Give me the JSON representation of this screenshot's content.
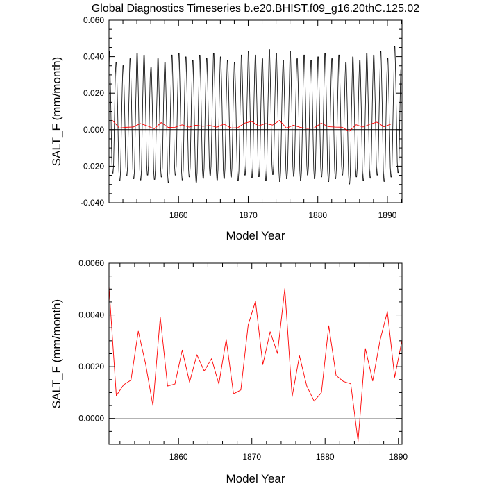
{
  "figure": {
    "title": "Global Diagnostics Timeseries b.e20.BHIST.f09_g16.20thC.125.02"
  },
  "chart_data": [
    {
      "type": "line",
      "title": "Global Diagnostics Timeseries b.e20.BHIST.f09_g16.20thC.125.02",
      "xlabel": "Model Year",
      "ylabel": "SALT_F (mm/month)",
      "xlim": [
        1850,
        1892.1
      ],
      "ylim": [
        -0.04,
        0.06
      ],
      "xticks": [
        {
          "value": 1860,
          "label": "1860"
        },
        {
          "value": 1870,
          "label": "1870"
        },
        {
          "value": 1880,
          "label": "1880"
        },
        {
          "value": 1890,
          "label": "1890"
        }
      ],
      "yticks": [
        {
          "value": -0.04,
          "label": "-0.040"
        },
        {
          "value": -0.02,
          "label": "-0.020"
        },
        {
          "value": 0.0,
          "label": "0.000"
        },
        {
          "value": 0.02,
          "label": "0.020"
        },
        {
          "value": 0.04,
          "label": "0.040"
        },
        {
          "value": 0.06,
          "label": "0.060"
        }
      ],
      "reference_line": 0,
      "grid": false,
      "series": [
        {
          "color": "#000000",
          "kind": "monthly",
          "x_start": 1850.0,
          "x_step": 0.08333,
          "annual_max": [
            0.045,
            0.039,
            0.037,
            0.041,
            0.044,
            0.043,
            0.036,
            0.041,
            0.039,
            0.043,
            0.044,
            0.042,
            0.04,
            0.043,
            0.041,
            0.044,
            0.042,
            0.04,
            0.039,
            0.043,
            0.045,
            0.043,
            0.041,
            0.046,
            0.044,
            0.04,
            0.045,
            0.041,
            0.043,
            0.04,
            0.042,
            0.044,
            0.041,
            0.043,
            0.039,
            0.042,
            0.04,
            0.044,
            0.043,
            0.045,
            0.041,
            0.048
          ],
          "annual_min": [
            -0.03,
            -0.034,
            -0.031,
            -0.033,
            -0.034,
            -0.031,
            -0.033,
            -0.032,
            -0.035,
            -0.031,
            -0.034,
            -0.032,
            -0.035,
            -0.033,
            -0.031,
            -0.034,
            -0.033,
            -0.032,
            -0.034,
            -0.031,
            -0.033,
            -0.032,
            -0.034,
            -0.031,
            -0.035,
            -0.033,
            -0.032,
            -0.034,
            -0.031,
            -0.033,
            -0.032,
            -0.035,
            -0.033,
            -0.031,
            -0.036,
            -0.032,
            -0.034,
            -0.033,
            -0.031,
            -0.035,
            -0.032,
            -0.03
          ]
        },
        {
          "color": "#ff0000",
          "kind": "annual",
          "x": [
            1850.5,
            1851.5,
            1852.5,
            1853.5,
            1854.5,
            1855.5,
            1856.5,
            1857.5,
            1858.5,
            1859.5,
            1860.5,
            1861.5,
            1862.5,
            1863.5,
            1864.5,
            1865.5,
            1866.5,
            1867.5,
            1868.5,
            1869.5,
            1870.5,
            1871.5,
            1872.5,
            1873.5,
            1874.5,
            1875.5,
            1876.5,
            1877.5,
            1878.5,
            1879.5,
            1880.5,
            1881.5,
            1882.5,
            1883.5,
            1884.5,
            1885.5,
            1886.5,
            1887.5,
            1888.5,
            1889.5,
            1890.5
          ],
          "y": [
            0.0051,
            0.00088,
            0.0013,
            0.00148,
            0.00337,
            0.0021,
            0.00049,
            0.00392,
            0.00125,
            0.00133,
            0.00264,
            0.0014,
            0.00246,
            0.00183,
            0.00231,
            0.00133,
            0.00306,
            0.00095,
            0.0011,
            0.00361,
            0.00453,
            0.00208,
            0.00335,
            0.00251,
            0.00502,
            0.00084,
            0.00242,
            0.00125,
            0.00067,
            0.001,
            0.00358,
            0.00166,
            0.00143,
            0.00134,
            -0.00088,
            0.0027,
            0.00145,
            0.00302,
            0.00413,
            0.00159,
            0.00303
          ]
        }
      ]
    },
    {
      "type": "line",
      "xlabel": "Model Year",
      "ylabel": "SALT_F (mm/month)",
      "xlim": [
        1850.5,
        1890.5
      ],
      "ylim": [
        -0.001,
        0.006
      ],
      "xticks": [
        {
          "value": 1860,
          "label": "1860"
        },
        {
          "value": 1870,
          "label": "1870"
        },
        {
          "value": 1880,
          "label": "1880"
        },
        {
          "value": 1890,
          "label": "1890"
        }
      ],
      "yticks": [
        {
          "value": 0.0,
          "label": "0.0000"
        },
        {
          "value": 0.002,
          "label": "0.0020"
        },
        {
          "value": 0.004,
          "label": "0.0040"
        },
        {
          "value": 0.006,
          "label": "0.0060"
        }
      ],
      "reference_line": 0,
      "grid": false,
      "series": [
        {
          "color": "#ff0000",
          "kind": "annual",
          "x": [
            1850.5,
            1851.5,
            1852.5,
            1853.5,
            1854.5,
            1855.5,
            1856.5,
            1857.5,
            1858.5,
            1859.5,
            1860.5,
            1861.5,
            1862.5,
            1863.5,
            1864.5,
            1865.5,
            1866.5,
            1867.5,
            1868.5,
            1869.5,
            1870.5,
            1871.5,
            1872.5,
            1873.5,
            1874.5,
            1875.5,
            1876.5,
            1877.5,
            1878.5,
            1879.5,
            1880.5,
            1881.5,
            1882.5,
            1883.5,
            1884.5,
            1885.5,
            1886.5,
            1887.5,
            1888.5,
            1889.5,
            1890.5
          ],
          "y": [
            0.0051,
            0.00088,
            0.0013,
            0.00148,
            0.00337,
            0.0021,
            0.00049,
            0.00392,
            0.00125,
            0.00133,
            0.00264,
            0.0014,
            0.00246,
            0.00183,
            0.00231,
            0.00133,
            0.00306,
            0.00095,
            0.0011,
            0.00361,
            0.00453,
            0.00208,
            0.00335,
            0.00251,
            0.00502,
            0.00084,
            0.00242,
            0.00125,
            0.00067,
            0.001,
            0.00358,
            0.00166,
            0.00143,
            0.00134,
            -0.00088,
            0.0027,
            0.00145,
            0.00302,
            0.00413,
            0.00159,
            0.00303
          ]
        }
      ]
    }
  ]
}
